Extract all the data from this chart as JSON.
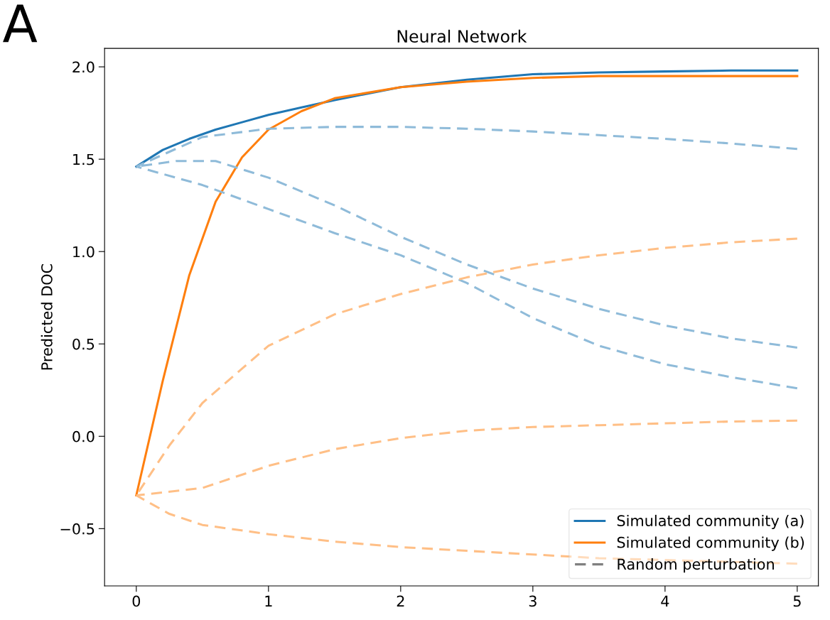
{
  "chart_data": {
    "type": "line",
    "title": "Neural Network",
    "ylabel": "Predicted DOC",
    "annotations": [
      "A"
    ],
    "xlim": [
      -0.24,
      5.16
    ],
    "ylim": [
      -0.81,
      2.1
    ],
    "xticks": [
      0,
      1,
      2,
      3,
      4,
      5
    ],
    "yticks": [
      {
        "value": -0.5,
        "label": "−0.5"
      },
      {
        "value": 0,
        "label": "0.0"
      },
      {
        "value": 0.5,
        "label": "0.5"
      },
      {
        "value": 1,
        "label": "1.0"
      },
      {
        "value": 1.5,
        "label": "1.5"
      },
      {
        "value": 2,
        "label": "2.0"
      }
    ],
    "grid": false,
    "legend": "bottom right",
    "marker": "none",
    "series": [
      {
        "name": "Simulated community (a)",
        "color": "#1f77b4",
        "line_style": "solid",
        "x": [
          0,
          0.2,
          0.4,
          0.6,
          0.8,
          1,
          1.25,
          1.5,
          2,
          2.5,
          3,
          3.5,
          4,
          4.5,
          5
        ],
        "values": [
          1.46,
          1.55,
          1.61,
          1.66,
          1.7,
          1.74,
          1.78,
          1.82,
          1.89,
          1.93,
          1.96,
          1.97,
          1.975,
          1.98,
          1.98
        ]
      },
      {
        "name": "Simulated community (b)",
        "color": "#ff7f0e",
        "line_style": "solid",
        "x": [
          0,
          0.2,
          0.4,
          0.6,
          0.8,
          1,
          1.25,
          1.5,
          2,
          2.5,
          3,
          3.5,
          4,
          4.5,
          5
        ],
        "values": [
          -0.32,
          0.3,
          0.87,
          1.27,
          1.51,
          1.66,
          1.76,
          1.83,
          1.89,
          1.92,
          1.94,
          1.95,
          1.95,
          1.95,
          1.95
        ]
      },
      {
        "name": "Random perturbation",
        "color": "#808080",
        "line_style": "dashed"
      },
      {
        "color": "#8fbbd9",
        "line_style": "dashed",
        "x": [
          0,
          0.5,
          1,
          1.5,
          2,
          2.5,
          3,
          3.5,
          4,
          4.5,
          5
        ],
        "values": [
          1.46,
          1.62,
          1.665,
          1.675,
          1.675,
          1.665,
          1.65,
          1.63,
          1.61,
          1.585,
          1.555
        ]
      },
      {
        "color": "#8fbbd9",
        "line_style": "dashed",
        "x": [
          0,
          0.3,
          0.6,
          1,
          1.5,
          2,
          2.5,
          3,
          3.5,
          4,
          4.5,
          5
        ],
        "values": [
          1.46,
          1.49,
          1.49,
          1.4,
          1.25,
          1.08,
          0.93,
          0.8,
          0.69,
          0.6,
          0.53,
          0.48
        ]
      },
      {
        "color": "#8fbbd9",
        "line_style": "dashed",
        "x": [
          0,
          0.5,
          1,
          1.5,
          2,
          2.5,
          3,
          3.5,
          4,
          4.5,
          5
        ],
        "values": [
          1.46,
          1.36,
          1.23,
          1.1,
          0.98,
          0.83,
          0.64,
          0.49,
          0.39,
          0.32,
          0.26
        ]
      },
      {
        "color": "#ffbf86",
        "line_style": "dashed",
        "x": [
          0,
          0.25,
          0.5,
          1,
          1.5,
          2,
          2.5,
          3,
          3.5,
          4,
          4.5,
          5
        ],
        "values": [
          -0.32,
          -0.05,
          0.18,
          0.49,
          0.66,
          0.77,
          0.86,
          0.93,
          0.98,
          1.02,
          1.05,
          1.07
        ]
      },
      {
        "color": "#ffbf86",
        "line_style": "dashed",
        "x": [
          0,
          0.5,
          1,
          1.5,
          2,
          2.5,
          3,
          3.5,
          4,
          4.5,
          5
        ],
        "values": [
          -0.32,
          -0.28,
          -0.16,
          -0.07,
          -0.01,
          0.03,
          0.05,
          0.06,
          0.07,
          0.08,
          0.085
        ]
      },
      {
        "color": "#ffbf86",
        "line_style": "dashed",
        "x": [
          0,
          0.25,
          0.5,
          1,
          1.5,
          2,
          2.5,
          3,
          3.5,
          4,
          4.5,
          5
        ],
        "values": [
          -0.32,
          -0.42,
          -0.48,
          -0.53,
          -0.57,
          -0.6,
          -0.62,
          -0.64,
          -0.66,
          -0.67,
          -0.68,
          -0.69
        ]
      }
    ]
  }
}
